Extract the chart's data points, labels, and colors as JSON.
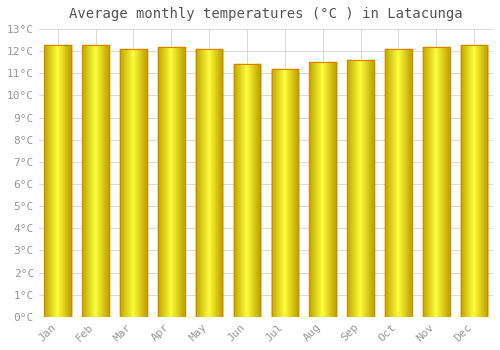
{
  "title": "Average monthly temperatures (°C ) in Latacunga",
  "months": [
    "Jan",
    "Feb",
    "Mar",
    "Apr",
    "May",
    "Jun",
    "Jul",
    "Aug",
    "Sep",
    "Oct",
    "Nov",
    "Dec"
  ],
  "values": [
    12.3,
    12.3,
    12.1,
    12.2,
    12.1,
    11.4,
    11.2,
    11.5,
    11.6,
    12.1,
    12.2,
    12.3
  ],
  "bar_color_light": "#FFD060",
  "bar_color_mid": "#FFA500",
  "bar_color_dark": "#E08000",
  "background_color": "#FFFFFF",
  "plot_bg_color": "#FFFFFF",
  "grid_color": "#CCCCCC",
  "ylim": [
    0,
    13
  ],
  "yticks": [
    0,
    1,
    2,
    3,
    4,
    5,
    6,
    7,
    8,
    9,
    10,
    11,
    12,
    13
  ],
  "title_fontsize": 10,
  "tick_fontsize": 8,
  "font_family": "monospace",
  "tick_color": "#999999"
}
